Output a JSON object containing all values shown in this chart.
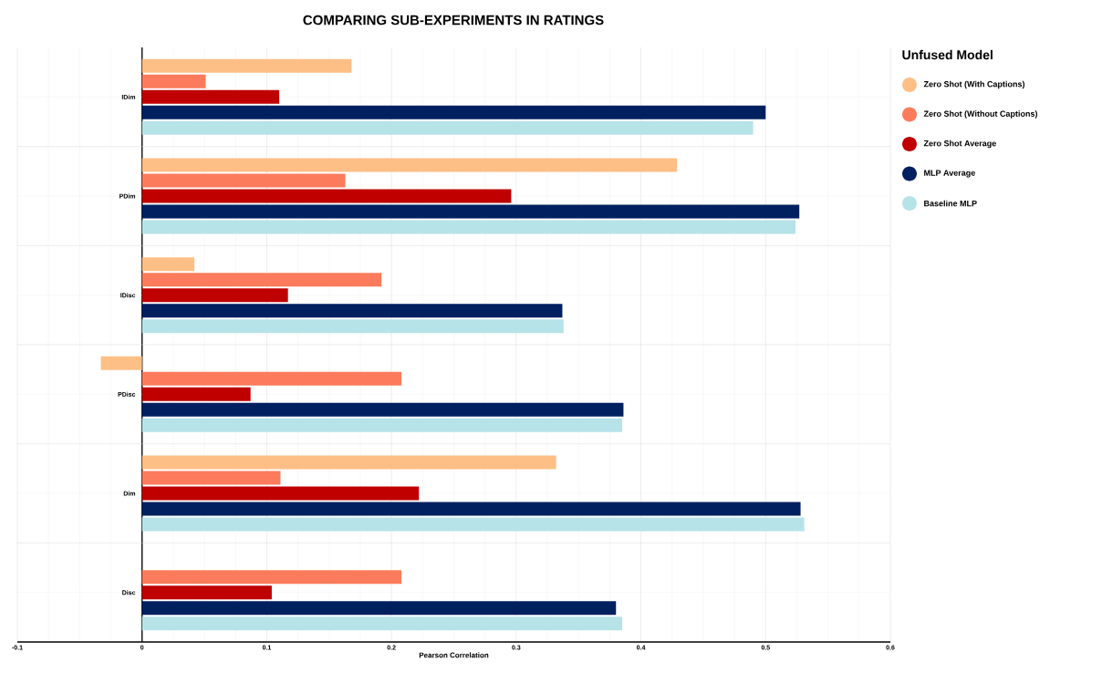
{
  "chart_data": {
    "type": "bar",
    "orientation": "horizontal",
    "title": "COMPARING SUB-EXPERIMENTS IN RATINGS",
    "xlabel": "Pearson Correlation",
    "legend_title": "Unfused Model",
    "legend": "right",
    "grid": true,
    "categories": [
      "IDim",
      "PDim",
      "IDisc",
      "PDisc",
      "Dim",
      "Disc"
    ],
    "series": [
      {
        "name": "Zero Shot (With Captions)",
        "color": "#fdbf86",
        "values": [
          0.168,
          0.429,
          0.042,
          -0.033,
          0.332,
          null
        ]
      },
      {
        "name": "Zero Shot (Without Captions)",
        "color": "#fc7b5c",
        "values": [
          0.051,
          0.163,
          0.192,
          0.208,
          0.111,
          0.208
        ]
      },
      {
        "name": "Zero Shot Average",
        "color": "#c00000",
        "values": [
          0.11,
          0.296,
          0.117,
          0.087,
          0.222,
          0.104
        ]
      },
      {
        "name": "MLP Average",
        "color": "#002060",
        "values": [
          0.5,
          0.527,
          0.337,
          0.386,
          0.528,
          0.38
        ]
      },
      {
        "name": "Baseline MLP",
        "color": "#b6e3e8",
        "values": [
          0.49,
          0.524,
          0.338,
          0.385,
          0.531,
          0.385
        ]
      }
    ],
    "xlim": [
      -0.1,
      0.6
    ],
    "xticks": [
      -0.1,
      0,
      0.1,
      0.2,
      0.3,
      0.4,
      0.5,
      0.6
    ]
  }
}
